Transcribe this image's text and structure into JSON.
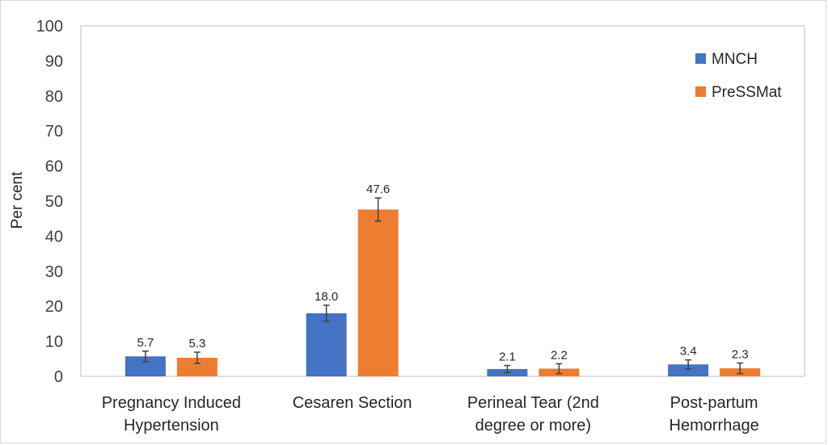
{
  "chart_data": {
    "type": "bar",
    "categories": [
      [
        "Pregnancy Induced",
        "Hypertension"
      ],
      [
        "Cesaren Section"
      ],
      [
        "Perineal Tear (2nd",
        "degree or more)"
      ],
      [
        "Post-partum",
        "Hemorrhage"
      ]
    ],
    "series": [
      {
        "name": "MNCH",
        "color": "#4472c4",
        "values": [
          5.7,
          18.0,
          2.1,
          3.4
        ],
        "labels": [
          "5.7",
          "18.0",
          "2.1",
          "3.4"
        ],
        "error": [
          1.5,
          2.3,
          1.0,
          1.3
        ]
      },
      {
        "name": "PreSSMat",
        "color": "#ed7d31",
        "values": [
          5.3,
          47.6,
          2.2,
          2.3
        ],
        "labels": [
          "5.3",
          "47.6",
          "2.2",
          "2.3"
        ],
        "error": [
          1.6,
          3.3,
          1.4,
          1.5
        ]
      }
    ],
    "title": "",
    "xlabel": "",
    "ylabel": "Per cent",
    "ylim": [
      0,
      100
    ],
    "yticks": [
      "0",
      "10",
      "20",
      "30",
      "40",
      "50",
      "60",
      "70",
      "80",
      "90",
      "100"
    ],
    "grid": false,
    "legend_position": "top-right"
  }
}
